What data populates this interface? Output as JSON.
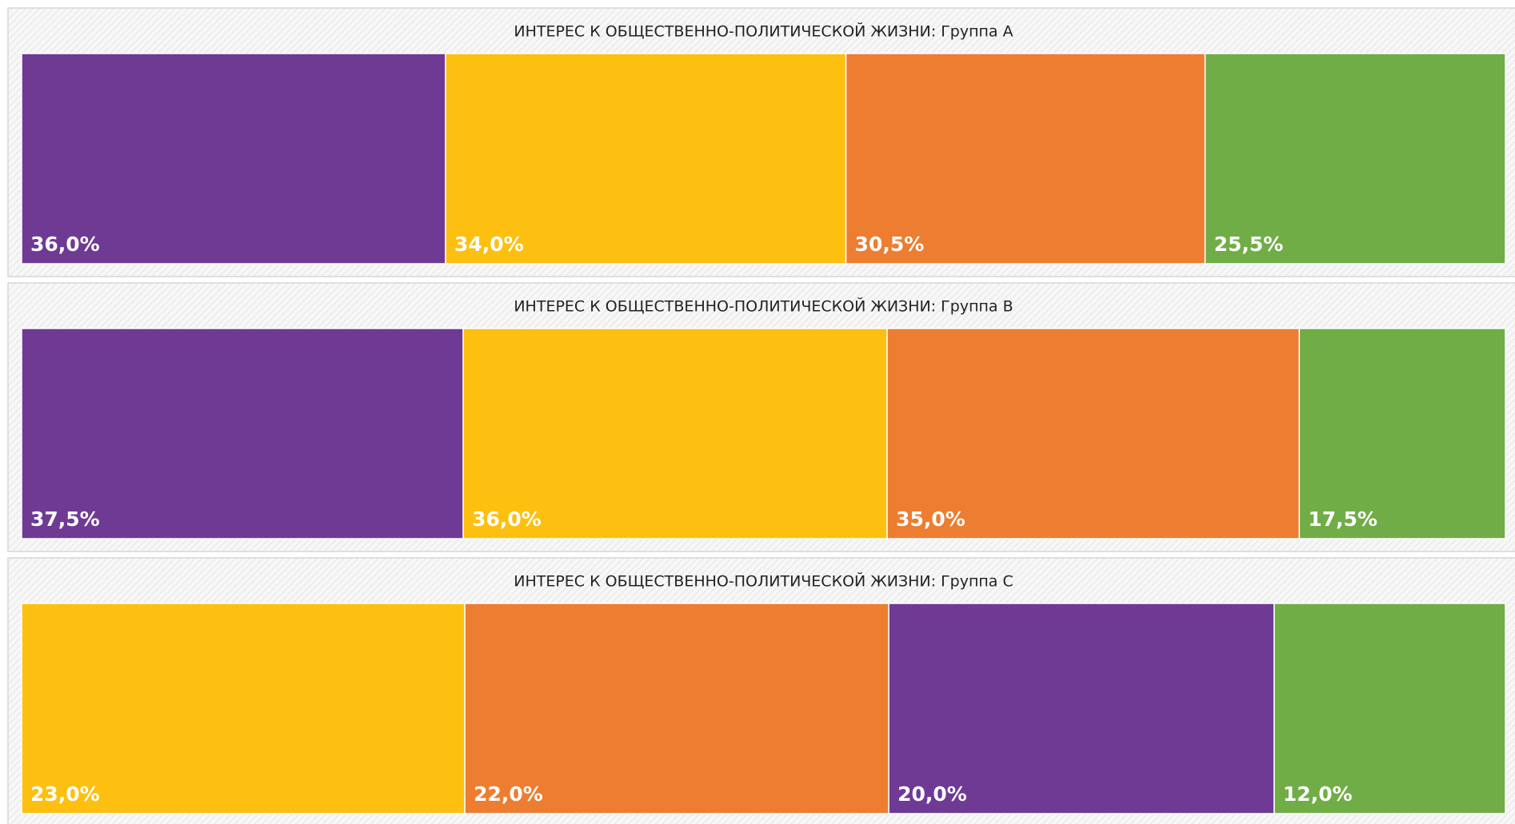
{
  "chart_data": [
    {
      "type": "treemap",
      "title": "ИНТЕРЕС К ОБЩЕСТВЕННО-ПОЛИТИЧЕСКОЙ ЖИЗНИ: Группа А",
      "values": [
        36.0,
        34.0,
        30.5,
        25.5
      ],
      "value_labels": [
        "36,0%",
        "34,0%",
        "30,5%",
        "25,5%"
      ],
      "colors": [
        "#6f3a94",
        "#fdc010",
        "#ed7d31",
        "#70ad47"
      ]
    },
    {
      "type": "treemap",
      "title": "ИНТЕРЕС К ОБЩЕСТВЕННО-ПОЛИТИЧЕСКОЙ ЖИЗНИ: Группа В",
      "values": [
        37.5,
        36.0,
        35.0,
        17.5
      ],
      "value_labels": [
        "37,5%",
        "36,0%",
        "35,0%",
        "17,5%"
      ],
      "colors": [
        "#6f3a94",
        "#fdc010",
        "#ed7d31",
        "#70ad47"
      ]
    },
    {
      "type": "treemap",
      "title": "ИНТЕРЕС К ОБЩЕСТВЕННО-ПОЛИТИЧЕСКОЙ ЖИЗНИ: Группа С",
      "values": [
        23.0,
        22.0,
        20.0,
        12.0
      ],
      "value_labels": [
        "23,0%",
        "22,0%",
        "20,0%",
        "12,0%"
      ],
      "colors": [
        "#fdc010",
        "#ed7d31",
        "#6f3a94",
        "#70ad47"
      ]
    }
  ]
}
